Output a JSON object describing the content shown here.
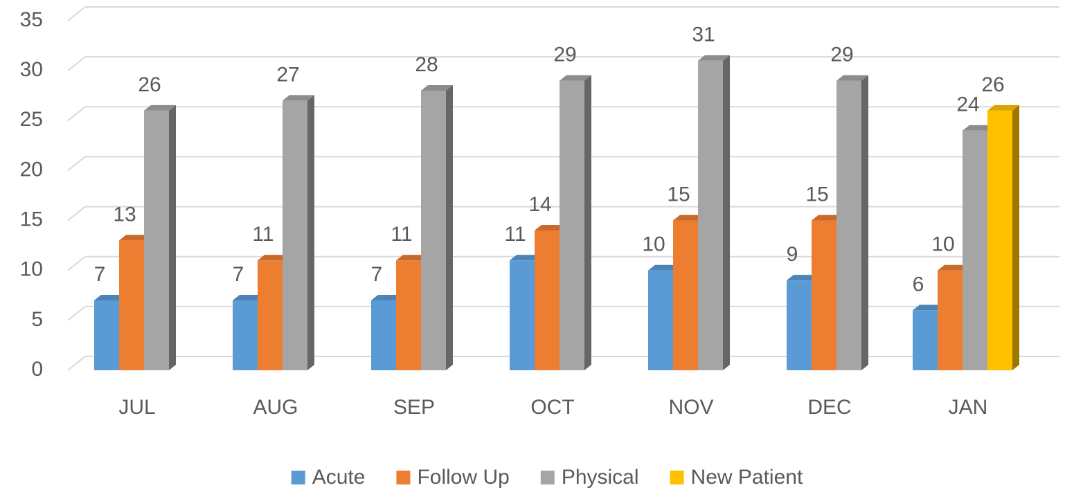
{
  "chart_data": {
    "type": "bar3d",
    "categories": [
      "JUL",
      "AUG",
      "SEP",
      "OCT",
      "NOV",
      "DEC",
      "JAN"
    ],
    "series": [
      {
        "name": "Acute",
        "color": "#5b9bd5",
        "values": [
          7,
          7,
          7,
          11,
          10,
          9,
          6
        ]
      },
      {
        "name": "Follow Up",
        "color": "#ed7d31",
        "values": [
          13,
          11,
          11,
          14,
          15,
          15,
          10
        ]
      },
      {
        "name": "Physical",
        "color": "#a5a5a5",
        "values": [
          26,
          27,
          28,
          29,
          31,
          29,
          24
        ]
      },
      {
        "name": "New Patient",
        "color": "#ffc000",
        "values": [
          null,
          null,
          null,
          null,
          null,
          null,
          26
        ]
      }
    ],
    "ylim": [
      0,
      35
    ],
    "yticks": [
      0,
      5,
      10,
      15,
      20,
      25,
      30,
      35
    ],
    "grid": true,
    "legend": "bottom"
  }
}
